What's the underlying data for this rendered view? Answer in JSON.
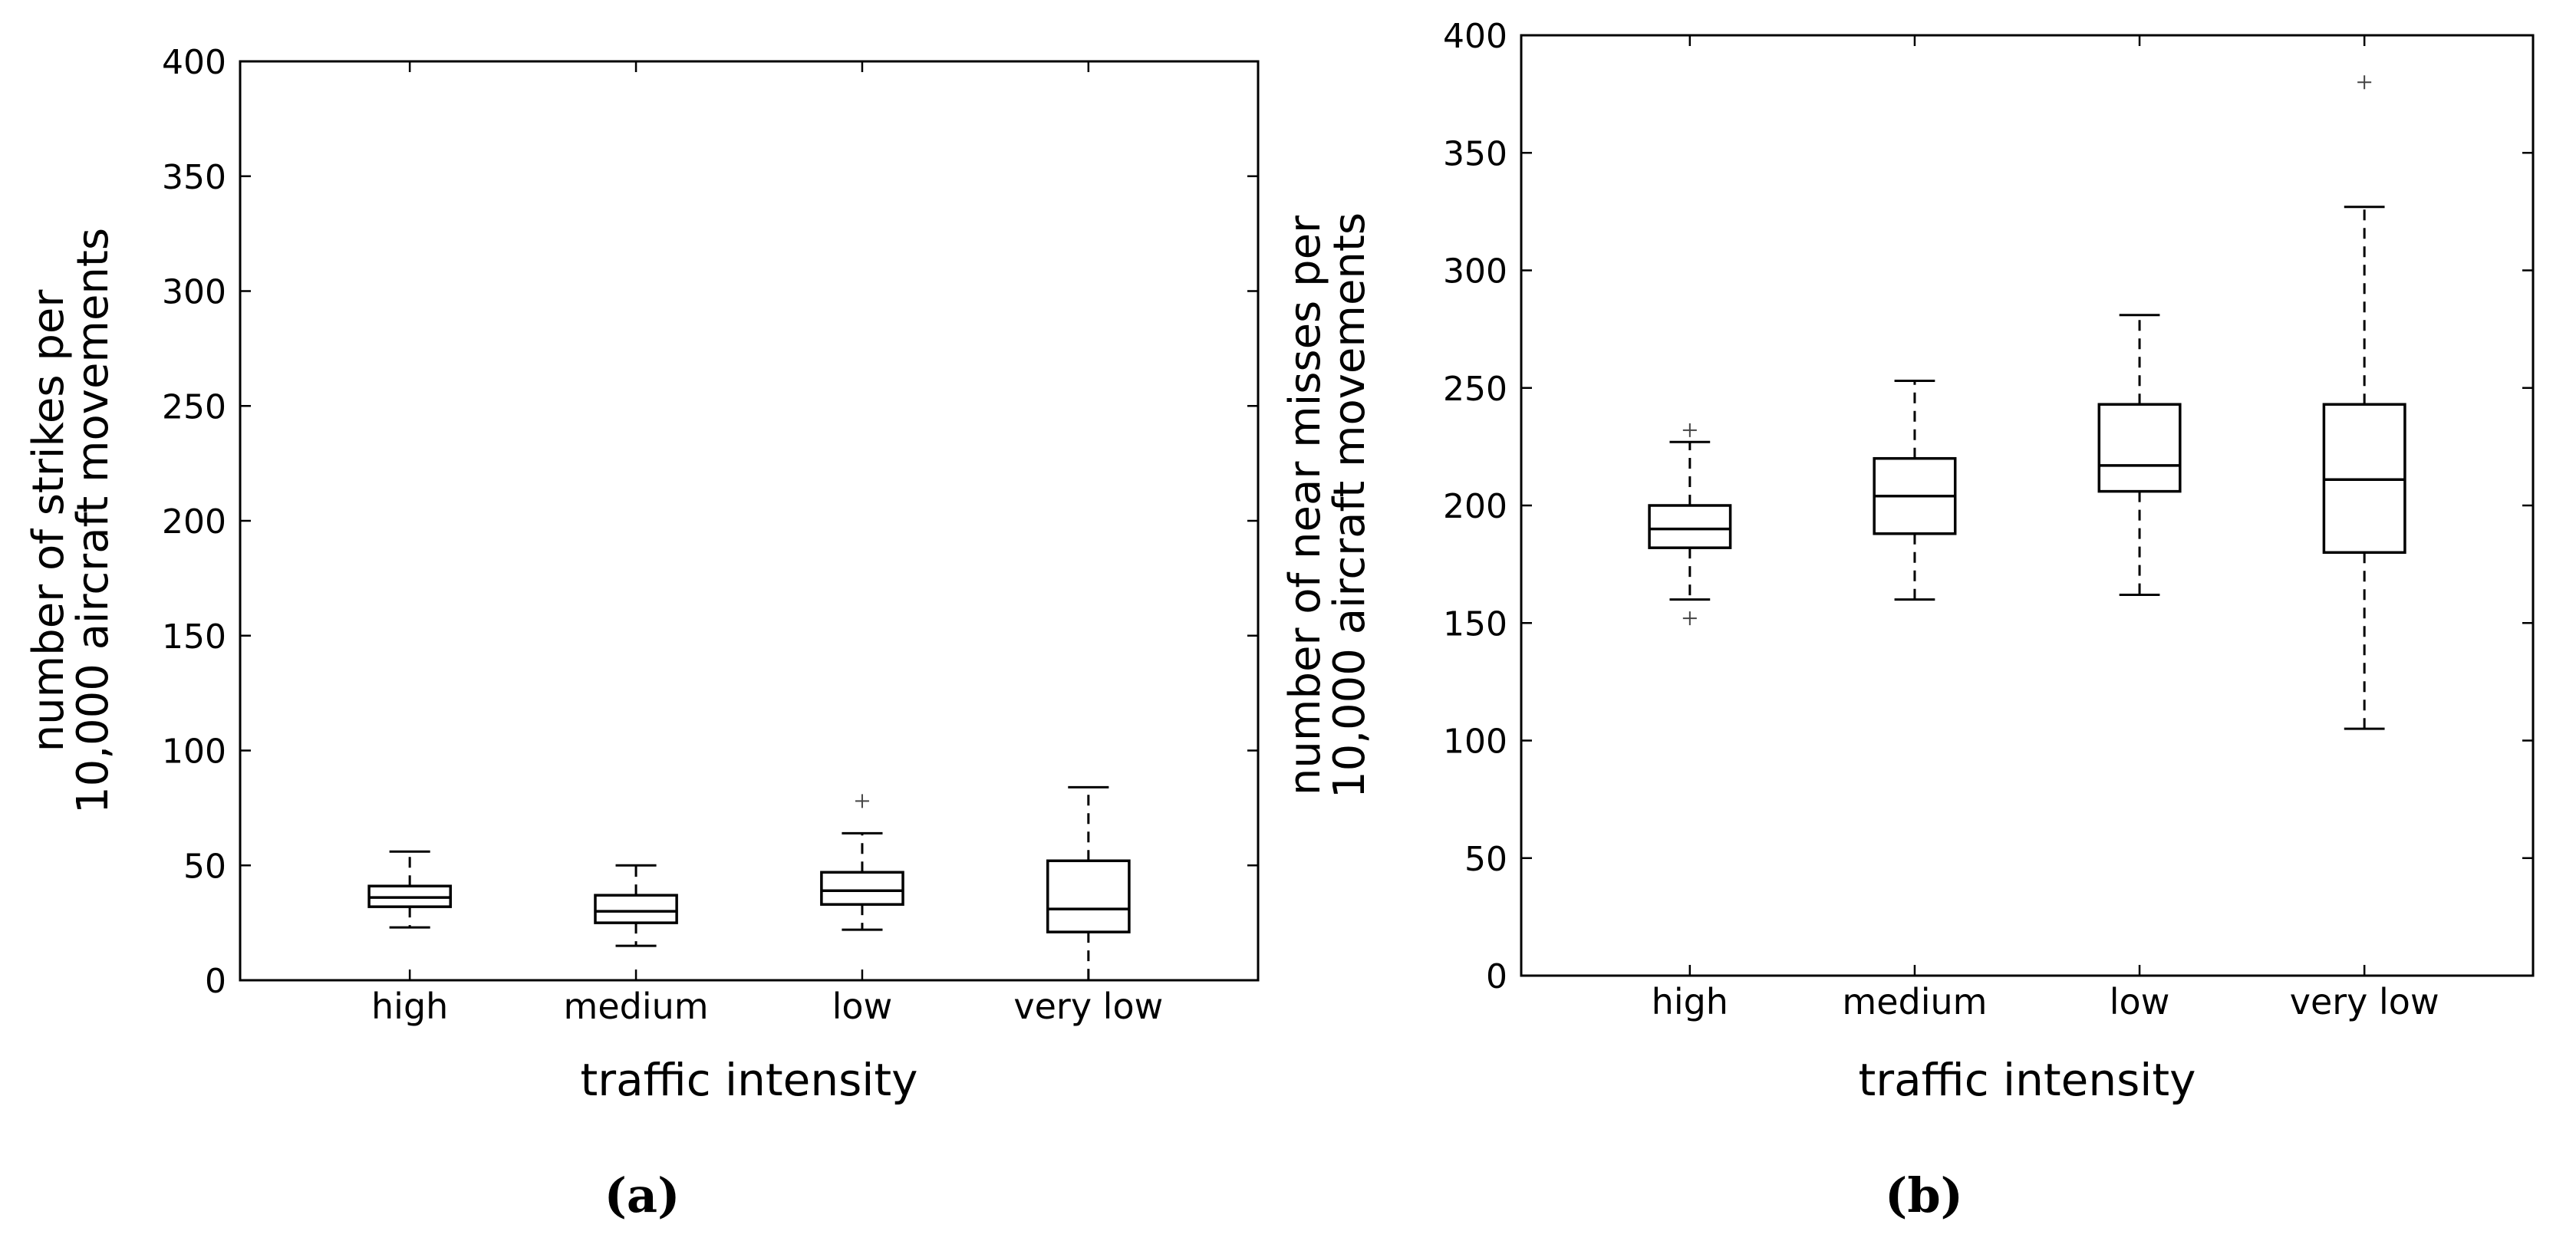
{
  "chart_data": [
    {
      "type": "box",
      "panel_label": "a",
      "title": "",
      "xlabel": "traffic intensity",
      "ylabel_lines": [
        "number of strikes per",
        "10,000 aircraft movements"
      ],
      "ylim": [
        0,
        400
      ],
      "yticks": [
        0,
        50,
        100,
        150,
        200,
        250,
        300,
        350,
        400
      ],
      "grid": false,
      "categories": [
        "high",
        "medium",
        "low",
        "very low"
      ],
      "boxes": [
        {
          "category": "high",
          "whisker_low": 23,
          "q1": 32,
          "median": 36,
          "q3": 41,
          "whisker_high": 56,
          "outliers": []
        },
        {
          "category": "medium",
          "whisker_low": 15,
          "q1": 25,
          "median": 30,
          "q3": 37,
          "whisker_high": 50,
          "outliers": []
        },
        {
          "category": "low",
          "whisker_low": 22,
          "q1": 33,
          "median": 39,
          "q3": 47,
          "whisker_high": 64,
          "outliers": [
            78
          ]
        },
        {
          "category": "very low",
          "whisker_low": 0,
          "q1": 21,
          "median": 31,
          "q3": 52,
          "whisker_high": 84,
          "outliers": []
        }
      ]
    },
    {
      "type": "box",
      "panel_label": "b",
      "title": "",
      "xlabel": "traffic intensity",
      "ylabel_lines": [
        "number of near misses per",
        "10,000 aircraft movements"
      ],
      "ylim": [
        0,
        400
      ],
      "yticks": [
        0,
        50,
        100,
        150,
        200,
        250,
        300,
        350,
        400
      ],
      "grid": false,
      "categories": [
        "high",
        "medium",
        "low",
        "very low"
      ],
      "boxes": [
        {
          "category": "high",
          "whisker_low": 160,
          "q1": 182,
          "median": 190,
          "q3": 200,
          "whisker_high": 227,
          "outliers": [
            152,
            232
          ]
        },
        {
          "category": "medium",
          "whisker_low": 160,
          "q1": 188,
          "median": 204,
          "q3": 220,
          "whisker_high": 253,
          "outliers": []
        },
        {
          "category": "low",
          "whisker_low": 162,
          "q1": 206,
          "median": 217,
          "q3": 243,
          "whisker_high": 281,
          "outliers": []
        },
        {
          "category": "very low",
          "whisker_low": 105,
          "q1": 180,
          "median": 211,
          "q3": 243,
          "whisker_high": 327,
          "outliers": [
            380
          ]
        }
      ]
    }
  ],
  "captions": [
    "(a)",
    "(b)"
  ]
}
